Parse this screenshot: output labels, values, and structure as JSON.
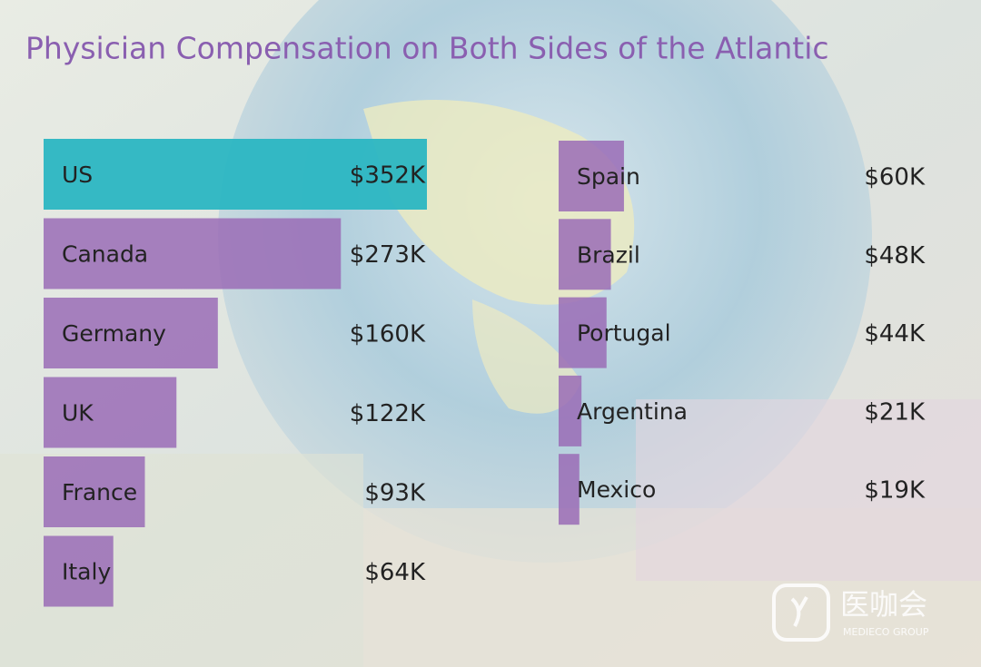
{
  "chart_data": {
    "type": "bar",
    "orientation": "horizontal",
    "title": "Physician Compensation on Both Sides of the Atlantic",
    "categories": [
      "US",
      "Canada",
      "Germany",
      "UK",
      "France",
      "Italy",
      "Spain",
      "Brazil",
      "Portugal",
      "Argentina",
      "Mexico"
    ],
    "values": [
      352,
      273,
      160,
      122,
      93,
      64,
      60,
      48,
      44,
      21,
      19
    ],
    "value_labels": [
      "$352K",
      "$273K",
      "$160K",
      "$122K",
      "$93K",
      "$64K",
      "$60K",
      "$48K",
      "$44K",
      "$21K",
      "$19K"
    ],
    "colors": [
      "#2bb6c2",
      "#9a6cb6",
      "#9a6cb6",
      "#9a6cb6",
      "#9a6cb6",
      "#9a6cb6",
      "#9a6cb6",
      "#9a6cb6",
      "#9a6cb6",
      "#9a6cb6",
      "#9a6cb6"
    ]
  },
  "watermark": {
    "name": "医咖会",
    "subtitle": "MEDIECO GROUP"
  }
}
